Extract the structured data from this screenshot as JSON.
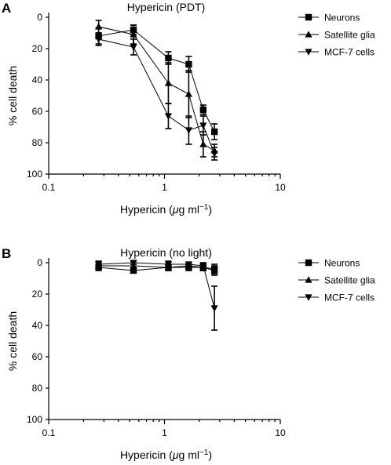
{
  "chart_data": [
    {
      "panel_label": "A",
      "type": "line",
      "title": "Hypericin (PDT)",
      "xlabel_main": "Hypericin (",
      "xlabel_mu": "μ",
      "xlabel_unit": "g ml",
      "xlabel_exp": "−1",
      "xlabel_close": ")",
      "ylabel": "% cell death",
      "x_scale": "log",
      "xlim": [
        0.1,
        10
      ],
      "xticks": [
        0.1,
        1,
        10
      ],
      "xtick_labels": [
        "0.1",
        "1",
        "10"
      ],
      "ylim": [
        0,
        100
      ],
      "y_inverted": true,
      "yticks": [
        0,
        20,
        40,
        60,
        80,
        100
      ],
      "ytick_labels": [
        "0",
        "20",
        "40",
        "60",
        "80",
        "100"
      ],
      "legend_position": "right",
      "series": [
        {
          "name": "Neurons",
          "marker": "square",
          "x": [
            0.27,
            0.54,
            1.08,
            1.62,
            2.16,
            2.7
          ],
          "y": [
            12,
            8,
            26,
            30,
            59,
            73
          ],
          "err": [
            5,
            3,
            4,
            5,
            3,
            5
          ]
        },
        {
          "name": "Satellite glia",
          "marker": "triangle-up",
          "x": [
            0.27,
            0.54,
            1.08,
            1.62,
            2.16,
            2.7
          ],
          "y": [
            6,
            11,
            42,
            49,
            81,
            85
          ],
          "err": [
            4,
            6,
            13,
            15,
            8,
            4
          ]
        },
        {
          "name": "MCF-7 cells",
          "marker": "triangle-down",
          "x": [
            0.27,
            0.54,
            1.08,
            1.62,
            2.16,
            2.7
          ],
          "y": [
            14,
            19,
            63,
            72,
            69,
            87
          ],
          "err": [
            4,
            5,
            8,
            9,
            6,
            4
          ]
        }
      ]
    },
    {
      "panel_label": "B",
      "type": "line",
      "title": "Hypericin (no light)",
      "xlabel_main": "Hypericin (",
      "xlabel_mu": "μ",
      "xlabel_unit": "g ml",
      "xlabel_exp": "−1",
      "xlabel_close": ")",
      "ylabel": "% cell death",
      "x_scale": "log",
      "xlim": [
        0.1,
        10
      ],
      "xticks": [
        0.1,
        1,
        10
      ],
      "xtick_labels": [
        "0.1",
        "1",
        "10"
      ],
      "ylim": [
        0,
        100
      ],
      "y_inverted": true,
      "yticks": [
        0,
        20,
        40,
        60,
        80,
        100
      ],
      "ytick_labels": [
        "0",
        "20",
        "40",
        "60",
        "80",
        "100"
      ],
      "legend_position": "right",
      "series": [
        {
          "name": "Neurons",
          "marker": "square",
          "x": [
            0.27,
            0.54,
            1.08,
            1.62,
            2.16,
            2.7
          ],
          "y": [
            3,
            5,
            3,
            3,
            3,
            4
          ],
          "err": [
            2,
            1,
            2,
            2,
            2,
            3
          ]
        },
        {
          "name": "Satellite glia",
          "marker": "triangle-up",
          "x": [
            0.27,
            0.54,
            1.08,
            1.62,
            2.16,
            2.7
          ],
          "y": [
            2,
            2,
            3,
            2,
            3,
            5
          ],
          "err": [
            2,
            1,
            2,
            2,
            2,
            3
          ]
        },
        {
          "name": "MCF-7 cells",
          "marker": "triangle-down",
          "x": [
            0.27,
            0.54,
            1.08,
            1.62,
            2.16,
            2.7
          ],
          "y": [
            1,
            0,
            1,
            1,
            2,
            29
          ],
          "err": [
            2,
            1,
            2,
            1,
            2,
            14
          ]
        }
      ]
    }
  ]
}
